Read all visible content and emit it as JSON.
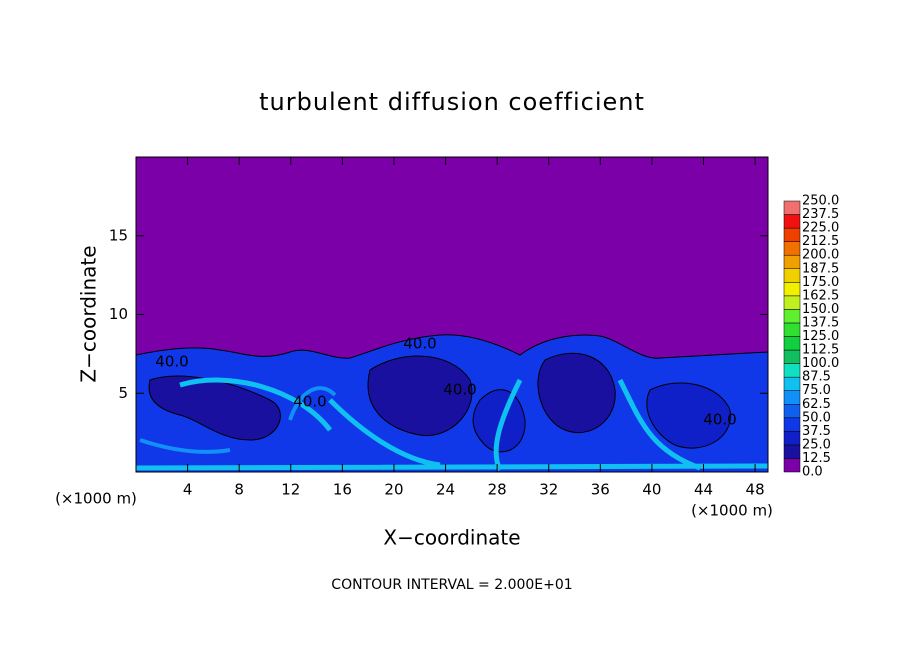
{
  "chart_data": {
    "type": "contour",
    "title": "turbulent diffusion coefficient",
    "x_label": "X−coordinate",
    "y_label": "Z−coordinate",
    "x_unit": "(×1000 m)",
    "y_unit": "(×1000 m)",
    "footnote": "CONTOUR INTERVAL = 2.000E+01",
    "xlim": [
      0,
      49
    ],
    "xticks": [
      4,
      8,
      12,
      16,
      20,
      24,
      28,
      32,
      36,
      40,
      44,
      48
    ],
    "ylim": [
      0,
      20
    ],
    "yticks": [
      5,
      10,
      15
    ],
    "contour_labels": [
      "40.0",
      "40.0",
      "40.0",
      "40.0",
      "40.0"
    ],
    "colorbar": {
      "ticks": [
        {
          "value": 0,
          "label": "0.0"
        },
        {
          "value": 12.5,
          "label": "12.5"
        },
        {
          "value": 25,
          "label": "25.0"
        },
        {
          "value": 37.5,
          "label": "37.5"
        },
        {
          "value": 50,
          "label": "50.0"
        },
        {
          "value": 62.5,
          "label": "62.5"
        },
        {
          "value": 75,
          "label": "75.0"
        },
        {
          "value": 87.5,
          "label": "87.5"
        },
        {
          "value": 100,
          "label": "100.0"
        },
        {
          "value": 112.5,
          "label": "112.5"
        },
        {
          "value": 125,
          "label": "125.0"
        },
        {
          "value": 137.5,
          "label": "137.5"
        },
        {
          "value": 150,
          "label": "150.0"
        },
        {
          "value": 162.5,
          "label": "162.5"
        },
        {
          "value": 175,
          "label": "175.0"
        },
        {
          "value": 187.5,
          "label": "187.5"
        },
        {
          "value": 200,
          "label": "200.0"
        },
        {
          "value": 212.5,
          "label": "212.5"
        },
        {
          "value": 225,
          "label": "225.0"
        },
        {
          "value": 237.5,
          "label": "237.5"
        },
        {
          "value": 250,
          "label": "250.0"
        }
      ],
      "colors": [
        "#7b00a8",
        "#1a10a0",
        "#1020c8",
        "#1038e8",
        "#1060f0",
        "#1090f8",
        "#10c0f0",
        "#10e0c0",
        "#10c060",
        "#10d040",
        "#30e030",
        "#60f030",
        "#c0f020",
        "#f0f000",
        "#f0d000",
        "#f0a000",
        "#f07000",
        "#f04000",
        "#f01010",
        "#f07070"
      ]
    }
  }
}
